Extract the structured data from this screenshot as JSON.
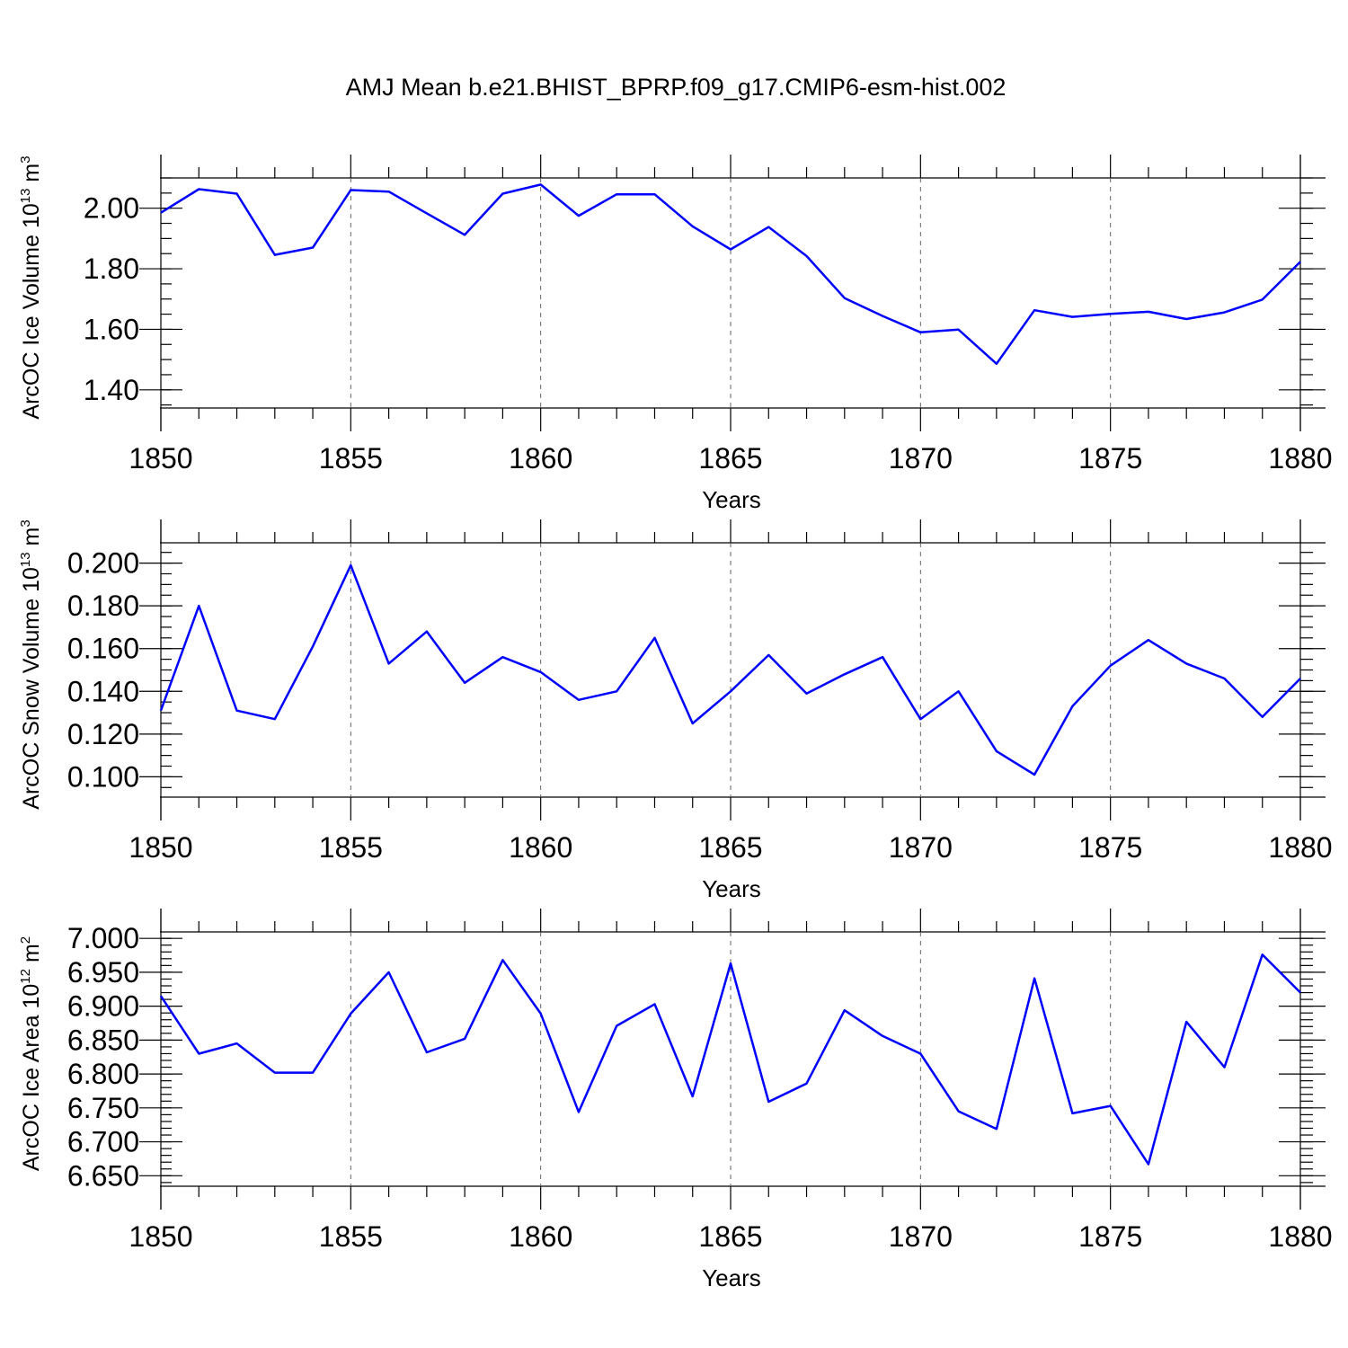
{
  "title": "AMJ Mean b.e21.BHIST_BPRP.f09_g17.CMIP6-esm-hist.002",
  "colors": {
    "series": "#0000ff",
    "axis": "#000000",
    "grid": "#666666"
  },
  "chart_data": [
    {
      "type": "line",
      "ylabel": "ArcOC Ice Volume 10",
      "ylabel_sup": "13",
      "ylabel_unit": " m",
      "ylabel_unit_sup": "3",
      "xlabel": "Years",
      "x": [
        1850,
        1851,
        1852,
        1853,
        1854,
        1855,
        1856,
        1857,
        1858,
        1859,
        1860,
        1861,
        1862,
        1863,
        1864,
        1865,
        1866,
        1867,
        1868,
        1869,
        1870,
        1871,
        1872,
        1873,
        1874,
        1875,
        1876,
        1877,
        1878,
        1879,
        1880
      ],
      "values": [
        1.985,
        2.063,
        2.048,
        1.846,
        1.87,
        2.06,
        2.055,
        1.983,
        1.912,
        2.048,
        2.078,
        1.975,
        2.046,
        2.046,
        1.94,
        1.864,
        1.938,
        1.842,
        1.703,
        1.644,
        1.59,
        1.599,
        1.486,
        1.663,
        1.641,
        1.651,
        1.658,
        1.634,
        1.656,
        1.698,
        1.823
      ],
      "xlim": [
        1850,
        1880
      ],
      "ylim": [
        1.34,
        2.1
      ],
      "xticks": [
        1850,
        1855,
        1860,
        1865,
        1870,
        1875,
        1880
      ],
      "xtick_labels": [
        "1850",
        "1855",
        "1860",
        "1865",
        "1870",
        "1875",
        "1880"
      ],
      "yticks": [
        1.4,
        1.6,
        1.8,
        2.0
      ],
      "ytick_labels": [
        "1.40",
        "1.60",
        "1.80",
        "2.00"
      ],
      "yminor_step": 0.05,
      "grid": "vertical dashed at major x ticks"
    },
    {
      "type": "line",
      "ylabel": "ArcOC Snow Volume 10",
      "ylabel_sup": "13",
      "ylabel_unit": " m",
      "ylabel_unit_sup": "3",
      "xlabel": "Years",
      "x": [
        1850,
        1851,
        1852,
        1853,
        1854,
        1855,
        1856,
        1857,
        1858,
        1859,
        1860,
        1861,
        1862,
        1863,
        1864,
        1865,
        1866,
        1867,
        1868,
        1869,
        1870,
        1871,
        1872,
        1873,
        1874,
        1875,
        1876,
        1877,
        1878,
        1879,
        1880
      ],
      "values": [
        0.131,
        0.18,
        0.131,
        0.127,
        0.161,
        0.199,
        0.153,
        0.168,
        0.144,
        0.156,
        0.149,
        0.136,
        0.14,
        0.165,
        0.125,
        0.14,
        0.157,
        0.139,
        0.148,
        0.156,
        0.127,
        0.14,
        0.112,
        0.101,
        0.133,
        0.152,
        0.164,
        0.153,
        0.146,
        0.128,
        0.146
      ],
      "xlim": [
        1850,
        1880
      ],
      "ylim": [
        0.0905,
        0.2095
      ],
      "xticks": [
        1850,
        1855,
        1860,
        1865,
        1870,
        1875,
        1880
      ],
      "xtick_labels": [
        "1850",
        "1855",
        "1860",
        "1865",
        "1870",
        "1875",
        "1880"
      ],
      "yticks": [
        0.1,
        0.12,
        0.14,
        0.16,
        0.18,
        0.2
      ],
      "ytick_labels": [
        "0.100",
        "0.120",
        "0.140",
        "0.160",
        "0.180",
        "0.200"
      ],
      "yminor_step": 0.005,
      "grid": "vertical dashed at major x ticks"
    },
    {
      "type": "line",
      "ylabel": "ArcOC Ice Area 10",
      "ylabel_sup": "12",
      "ylabel_unit": " m",
      "ylabel_unit_sup": "2",
      "xlabel": "Years",
      "x": [
        1850,
        1851,
        1852,
        1853,
        1854,
        1855,
        1856,
        1857,
        1858,
        1859,
        1860,
        1861,
        1862,
        1863,
        1864,
        1865,
        1866,
        1867,
        1868,
        1869,
        1870,
        1871,
        1872,
        1873,
        1874,
        1875,
        1876,
        1877,
        1878,
        1879,
        1880
      ],
      "values": [
        6.915,
        6.83,
        6.845,
        6.802,
        6.802,
        6.889,
        6.95,
        6.832,
        6.852,
        6.968,
        6.889,
        6.744,
        6.871,
        6.903,
        6.767,
        6.963,
        6.759,
        6.786,
        6.894,
        6.856,
        6.83,
        6.745,
        6.719,
        6.941,
        6.742,
        6.753,
        6.667,
        6.877,
        6.81,
        6.976,
        6.92
      ],
      "xlim": [
        1850,
        1880
      ],
      "ylim": [
        6.6345,
        7.0095
      ],
      "xticks": [
        1850,
        1855,
        1860,
        1865,
        1870,
        1875,
        1880
      ],
      "xtick_labels": [
        "1850",
        "1855",
        "1860",
        "1865",
        "1870",
        "1875",
        "1880"
      ],
      "yticks": [
        6.65,
        6.7,
        6.75,
        6.8,
        6.85,
        6.9,
        6.95,
        7.0
      ],
      "ytick_labels": [
        "6.650",
        "6.700",
        "6.750",
        "6.800",
        "6.850",
        "6.900",
        "6.950",
        "7.000"
      ],
      "yminor_step": 0.01,
      "grid": "vertical dashed at major x ticks"
    }
  ]
}
